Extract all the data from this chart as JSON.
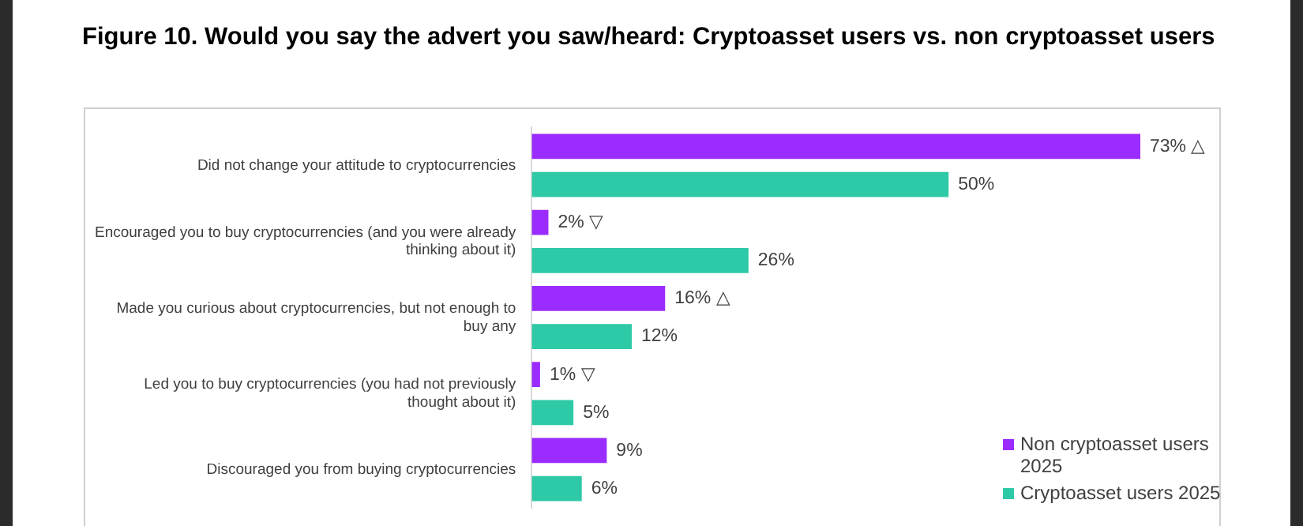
{
  "chart_data": {
    "type": "bar",
    "orientation": "horizontal",
    "title": "Figure 10. Would you say the advert you saw/heard: Cryptoasset users vs. non cryptoasset users",
    "categories": [
      "Did not change your attitude to cryptocurrencies",
      "Encouraged you to buy cryptocurrencies (and you were already thinking about it)",
      "Made you curious about cryptocurrencies, but not enough to buy any",
      "Led you to buy cryptocurrencies (you had not previously thought about it)",
      "Discouraged you from buying cryptocurrencies"
    ],
    "series": [
      {
        "name": "Non cryptoasset users 2025",
        "color": "#9b2cff",
        "values": [
          73,
          2,
          16,
          1,
          9
        ],
        "value_labels": [
          "73% △",
          "2% ▽",
          "16% △",
          "1% ▽",
          "9%"
        ]
      },
      {
        "name": "Cryptoasset users 2025",
        "color": "#2ec9a7",
        "values": [
          50,
          26,
          12,
          5,
          6
        ],
        "value_labels": [
          "50%",
          "26%",
          "12%",
          "5%",
          "6%"
        ]
      }
    ],
    "legend": "right"
  }
}
